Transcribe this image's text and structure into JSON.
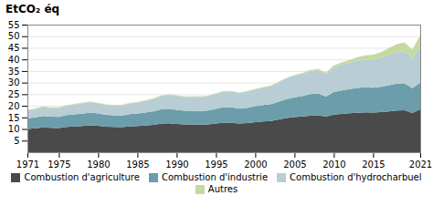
{
  "chart_data": {
    "type": "area",
    "stacked": true,
    "title": "EtCO₂ éq",
    "x": [
      1971,
      1972,
      1973,
      1974,
      1975,
      1976,
      1977,
      1978,
      1979,
      1980,
      1981,
      1982,
      1983,
      1984,
      1985,
      1986,
      1987,
      1988,
      1989,
      1990,
      1991,
      1992,
      1993,
      1994,
      1995,
      1996,
      1997,
      1998,
      1999,
      2000,
      2001,
      2002,
      2003,
      2004,
      2005,
      2006,
      2007,
      2008,
      2009,
      2010,
      2011,
      2012,
      2013,
      2014,
      2015,
      2016,
      2017,
      2018,
      2019,
      2020,
      2021
    ],
    "series": [
      {
        "name": "Combustion d'agriculture",
        "color": "#4a4a4a",
        "values": [
          10.0,
          10.3,
          10.7,
          10.5,
          10.4,
          10.9,
          11.1,
          11.3,
          11.6,
          11.4,
          11.0,
          10.9,
          10.8,
          11.1,
          11.3,
          11.5,
          11.8,
          12.3,
          12.5,
          12.2,
          12.0,
          12.0,
          11.9,
          12.0,
          12.4,
          12.8,
          12.7,
          12.4,
          12.6,
          13.0,
          13.3,
          13.5,
          14.1,
          14.7,
          15.1,
          15.4,
          15.7,
          15.9,
          15.3,
          16.2,
          16.5,
          16.8,
          17.0,
          17.2,
          17.1,
          17.3,
          17.6,
          18.0,
          18.1,
          16.9,
          18.5
        ]
      },
      {
        "name": "Combustion d'industrie",
        "color": "#6b9eaa",
        "values": [
          4.5,
          4.7,
          4.9,
          4.8,
          4.8,
          5.1,
          5.2,
          5.3,
          5.5,
          5.3,
          5.1,
          5.0,
          5.0,
          5.3,
          5.4,
          5.6,
          5.8,
          6.2,
          6.3,
          6.1,
          5.9,
          5.9,
          5.9,
          6.0,
          6.3,
          6.6,
          6.6,
          6.4,
          6.6,
          6.8,
          7.0,
          7.2,
          7.7,
          8.2,
          8.6,
          8.8,
          9.3,
          9.4,
          8.7,
          9.7,
          10.1,
          10.4,
          10.7,
          10.8,
          10.7,
          10.9,
          11.3,
          11.6,
          11.6,
          10.7,
          11.5
        ]
      },
      {
        "name": "Combustion d'hydrocharbuel",
        "color": "#b8cdd4",
        "values": [
          3.5,
          3.6,
          3.8,
          3.7,
          3.8,
          4.0,
          4.2,
          4.4,
          4.5,
          4.3,
          4.2,
          4.2,
          4.3,
          4.5,
          4.7,
          5.0,
          5.3,
          5.7,
          5.8,
          6.0,
          5.9,
          6.0,
          6.0,
          6.1,
          6.4,
          6.7,
          6.8,
          6.6,
          6.9,
          7.2,
          7.5,
          7.8,
          8.3,
          8.9,
          9.3,
          9.6,
          10.1,
          10.1,
          9.7,
          10.7,
          11.1,
          11.4,
          11.8,
          11.9,
          12.0,
          12.4,
          13.0,
          13.5,
          13.8,
          13.2,
          14.8
        ]
      },
      {
        "name": "Autres",
        "color": "#c5d9a0",
        "values": [
          0.3,
          0.3,
          0.3,
          0.3,
          0.3,
          0.3,
          0.3,
          0.3,
          0.3,
          0.3,
          0.3,
          0.3,
          0.3,
          0.3,
          0.3,
          0.3,
          0.3,
          0.3,
          0.3,
          0.3,
          0.3,
          0.3,
          0.3,
          0.3,
          0.3,
          0.3,
          0.3,
          0.3,
          0.3,
          0.3,
          0.3,
          0.3,
          0.3,
          0.3,
          0.3,
          0.4,
          0.4,
          0.5,
          0.6,
          0.8,
          1.0,
          1.2,
          1.5,
          1.8,
          2.2,
          2.5,
          3.0,
          3.5,
          3.8,
          3.5,
          5.5
        ]
      }
    ],
    "xlim": [
      1971,
      2021
    ],
    "xticks": [
      1971,
      1975,
      1980,
      1985,
      1990,
      1995,
      2000,
      2005,
      2010,
      2015,
      2021
    ],
    "ylim": [
      0,
      55
    ],
    "yticks": [
      5,
      10,
      15,
      20,
      25,
      30,
      35,
      40,
      45,
      50,
      55
    ],
    "grid": true,
    "legend": "bottom"
  }
}
